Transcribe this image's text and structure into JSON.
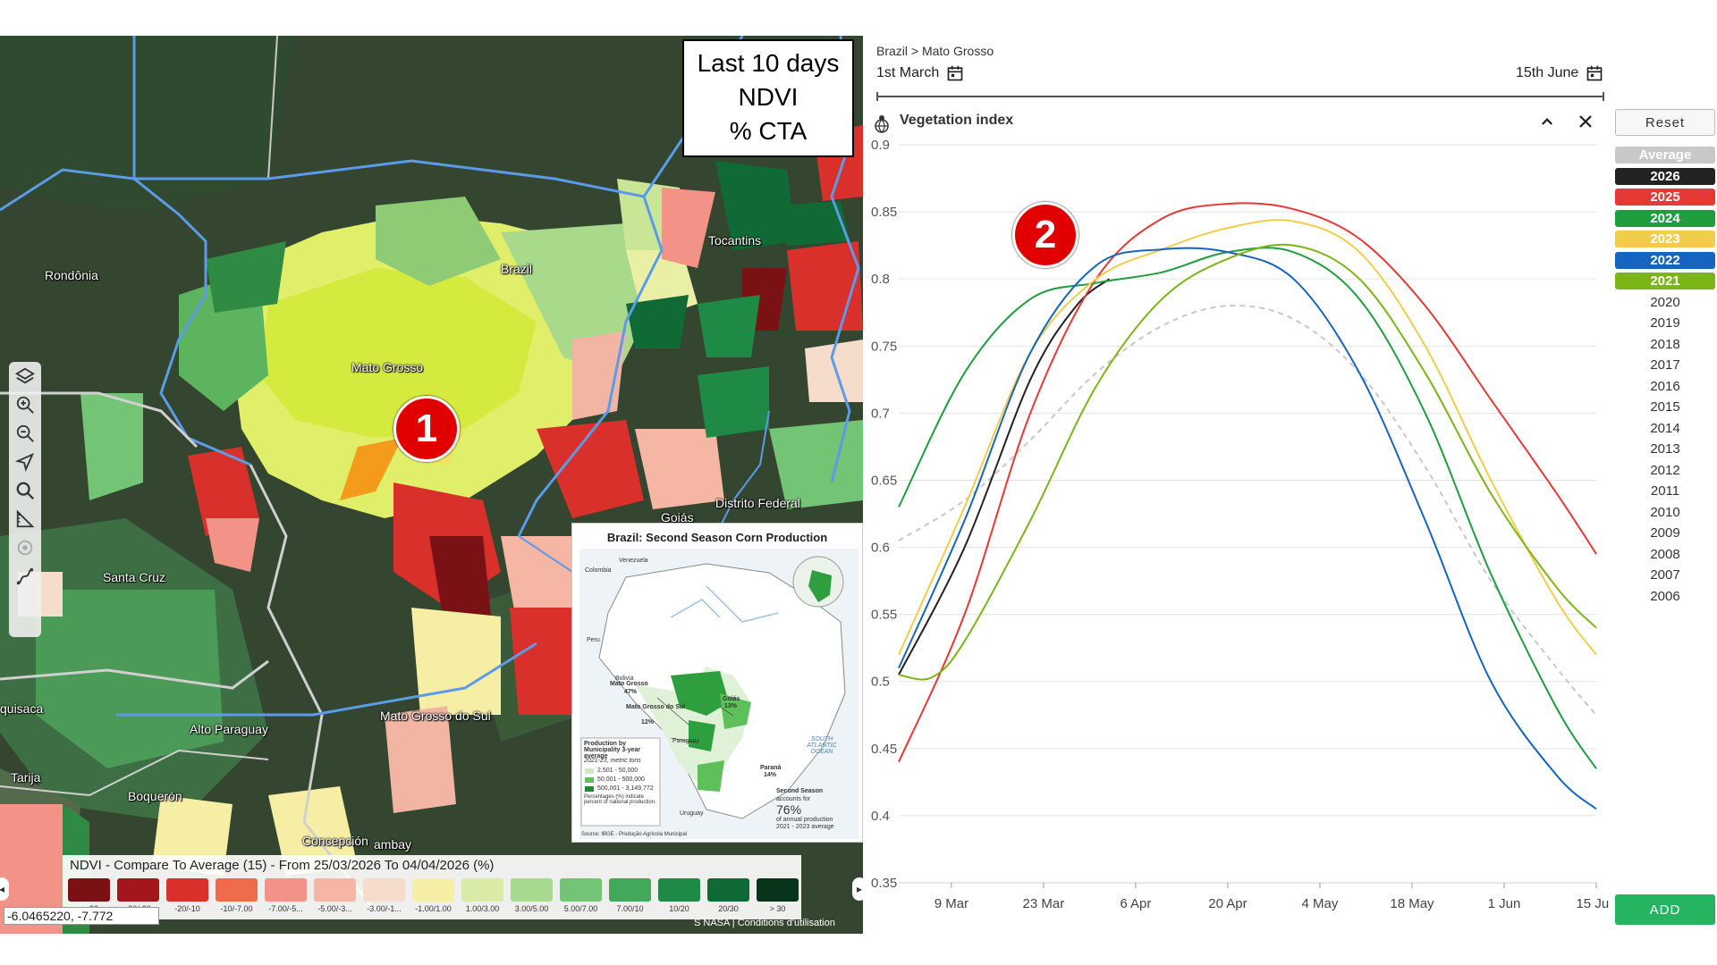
{
  "map": {
    "title_lines": [
      "Last 10 days",
      "NDVI",
      "% CTA"
    ],
    "places": {
      "rondonia": "Rondônia",
      "brazil": "Brazil",
      "tocantins": "Tocantins",
      "mato_grosso": "Mato Grosso",
      "santa_cruz": "Santa Cruz",
      "goias": "Goiás",
      "distrito_federal": "Distrito Federal",
      "chuquisaca": "quisaca",
      "alto_paraguay": "Alto Paraguay",
      "mato_grosso_do_sul": "Mato Grosso do Sul",
      "tarija": "Tarija",
      "boqueron": "Boquerón",
      "concepcion": "Concepción",
      "amambay": "ambay"
    },
    "badge": "1",
    "tools": [
      "layers-icon",
      "zoom-in-icon",
      "zoom-out-icon",
      "locate-icon",
      "search-icon",
      "measure-icon",
      "target-icon",
      "draw-icon"
    ],
    "legend": {
      "title": "NDVI - Compare To Average (15) - From 25/03/2026 To 04/04/2026 (%)",
      "items": [
        {
          "label": "< -30",
          "color": "#7a1114"
        },
        {
          "label": "-30/-20",
          "color": "#a3161c"
        },
        {
          "label": "-20/-10",
          "color": "#d9302b"
        },
        {
          "label": "-10/-7.00",
          "color": "#ef6c4a"
        },
        {
          "label": "-7.00/-5...",
          "color": "#f39387"
        },
        {
          "label": "-5.00/-3...",
          "color": "#f5b6a3"
        },
        {
          "label": "-3.00/-1...",
          "color": "#f6dccb"
        },
        {
          "label": "-1.00/1.00",
          "color": "#f6eea5"
        },
        {
          "label": "1.00/3.00",
          "color": "#d9eba6"
        },
        {
          "label": "3.00/5.00",
          "color": "#a7d98f"
        },
        {
          "label": "5.00/7.00",
          "color": "#73c474"
        },
        {
          "label": "7.00/10",
          "color": "#43a85a"
        },
        {
          "label": "10/20",
          "color": "#1f8a45"
        },
        {
          "label": "20/30",
          "color": "#0f6a35"
        },
        {
          "label": "> 30",
          "color": "#08341b"
        }
      ]
    },
    "coordinates": "-6.0465220, -7.772",
    "attribution": "S NASA | Conditions d'utilisation"
  },
  "inset": {
    "title": "Brazil: Second Season Corn Production",
    "labels": {
      "colombia": "Colombia",
      "venezuela": "Venezuela",
      "peru": "Peru",
      "bolivia": "Bolivia",
      "paraguay": "Paraguay",
      "uruguay": "Uruguay",
      "ocean": "SOUTH ATLANTIC OCEAN",
      "mg_name": "Mato Grosso",
      "mg_pct": "47%",
      "goias_name": "Goiás",
      "goias_pct": "13%",
      "ms_name": "Mato Grosso do Sul",
      "ms_pct": "12%",
      "parana_name": "Paraná",
      "parana_pct": "14%",
      "legend_title": "Production by Municipality 3-year average",
      "legend_sub": "2021-23, metric tons",
      "legend_r1": "2,501 - 50,000",
      "legend_r2": "50,001 - 500,000",
      "legend_r3": "500,001 - 3,149,772",
      "pct_note": "Percentages (%) indicate percent of national production.",
      "second_season": "Second Season",
      "accounts": "accounts for",
      "big_pct": "76%",
      "annual": "of annual production",
      "avg": "2021 - 2023 average",
      "source": "Source: IBGE - Produção Agrícola Municipal"
    }
  },
  "panel": {
    "breadcrumb": "Brazil > Mato Grosso",
    "start_date": "1st March",
    "end_date": "15th June",
    "chart_title": "Vegetation index",
    "badge": "2",
    "reset": "Reset",
    "add": "ADD",
    "years": [
      {
        "label": "Average",
        "color": "#c8c8c8"
      },
      {
        "label": "2026",
        "color": "#222222"
      },
      {
        "label": "2025",
        "color": "#e53935"
      },
      {
        "label": "2024",
        "color": "#1e9e3e"
      },
      {
        "label": "2023",
        "color": "#f2cd4b"
      },
      {
        "label": "2022",
        "color": "#1565c0"
      },
      {
        "label": "2021",
        "color": "#7cb518"
      },
      {
        "label": "2020",
        "color": ""
      },
      {
        "label": "2019",
        "color": ""
      },
      {
        "label": "2018",
        "color": ""
      },
      {
        "label": "2017",
        "color": ""
      },
      {
        "label": "2016",
        "color": ""
      },
      {
        "label": "2015",
        "color": ""
      },
      {
        "label": "2014",
        "color": ""
      },
      {
        "label": "2013",
        "color": ""
      },
      {
        "label": "2012",
        "color": ""
      },
      {
        "label": "2011",
        "color": ""
      },
      {
        "label": "2010",
        "color": ""
      },
      {
        "label": "2009",
        "color": ""
      },
      {
        "label": "2008",
        "color": ""
      },
      {
        "label": "2007",
        "color": ""
      },
      {
        "label": "2006",
        "color": ""
      }
    ]
  },
  "chart_data": {
    "type": "line",
    "title": "Vegetation index",
    "xlabel": "",
    "ylabel": "",
    "x_ticks": [
      "9 Mar",
      "23 Mar",
      "6 Apr",
      "20 Apr",
      "4 May",
      "18 May",
      "1 Jun",
      "15 Jun"
    ],
    "x_tick_days": [
      8,
      22,
      36,
      50,
      64,
      78,
      92,
      106
    ],
    "x_range_days": [
      0,
      106
    ],
    "y_ticks": [
      "0.35",
      "0.4",
      "0.45",
      "0.5",
      "0.55",
      "0.6",
      "0.65",
      "0.7",
      "0.75",
      "0.8",
      "0.85",
      "0.9"
    ],
    "ylim": [
      0.35,
      0.9
    ],
    "grid": "horizontal",
    "series": [
      {
        "name": "Average",
        "color": "#c8c8c8",
        "dashed": true,
        "x": [
          0,
          10,
          20,
          30,
          40,
          50,
          60,
          70,
          80,
          90,
          100,
          106
        ],
        "y": [
          0.605,
          0.635,
          0.68,
          0.73,
          0.765,
          0.78,
          0.77,
          0.73,
          0.66,
          0.575,
          0.51,
          0.475
        ]
      },
      {
        "name": "2026",
        "color": "#222222",
        "x": [
          0,
          10,
          20,
          27,
          32
        ],
        "y": [
          0.505,
          0.6,
          0.725,
          0.78,
          0.8
        ]
      },
      {
        "name": "2025",
        "color": "#e53935",
        "x": [
          0,
          10,
          20,
          30,
          40,
          50,
          60,
          70,
          80,
          90,
          100,
          106
        ],
        "y": [
          0.44,
          0.55,
          0.7,
          0.8,
          0.845,
          0.856,
          0.852,
          0.83,
          0.78,
          0.71,
          0.64,
          0.595
        ]
      },
      {
        "name": "2024",
        "color": "#1e9e3e",
        "x": [
          0,
          10,
          20,
          30,
          40,
          50,
          60,
          70,
          80,
          90,
          100,
          106
        ],
        "y": [
          0.63,
          0.73,
          0.785,
          0.797,
          0.805,
          0.82,
          0.82,
          0.785,
          0.7,
          0.58,
          0.48,
          0.435
        ]
      },
      {
        "name": "2023",
        "color": "#f2cd4b",
        "x": [
          0,
          10,
          20,
          30,
          40,
          50,
          60,
          70,
          80,
          90,
          100,
          106
        ],
        "y": [
          0.52,
          0.63,
          0.745,
          0.8,
          0.822,
          0.838,
          0.843,
          0.82,
          0.75,
          0.65,
          0.56,
          0.52
        ]
      },
      {
        "name": "2022",
        "color": "#1565c0",
        "x": [
          0,
          10,
          20,
          30,
          40,
          50,
          60,
          70,
          80,
          90,
          100,
          106
        ],
        "y": [
          0.51,
          0.62,
          0.745,
          0.81,
          0.822,
          0.82,
          0.8,
          0.73,
          0.62,
          0.5,
          0.43,
          0.405
        ]
      },
      {
        "name": "2021",
        "color": "#7cb518",
        "x": [
          0,
          5,
          10,
          20,
          30,
          40,
          50,
          60,
          70,
          80,
          90,
          100,
          106
        ],
        "y": [
          0.505,
          0.503,
          0.53,
          0.62,
          0.72,
          0.785,
          0.815,
          0.825,
          0.8,
          0.73,
          0.64,
          0.57,
          0.54
        ]
      }
    ]
  }
}
